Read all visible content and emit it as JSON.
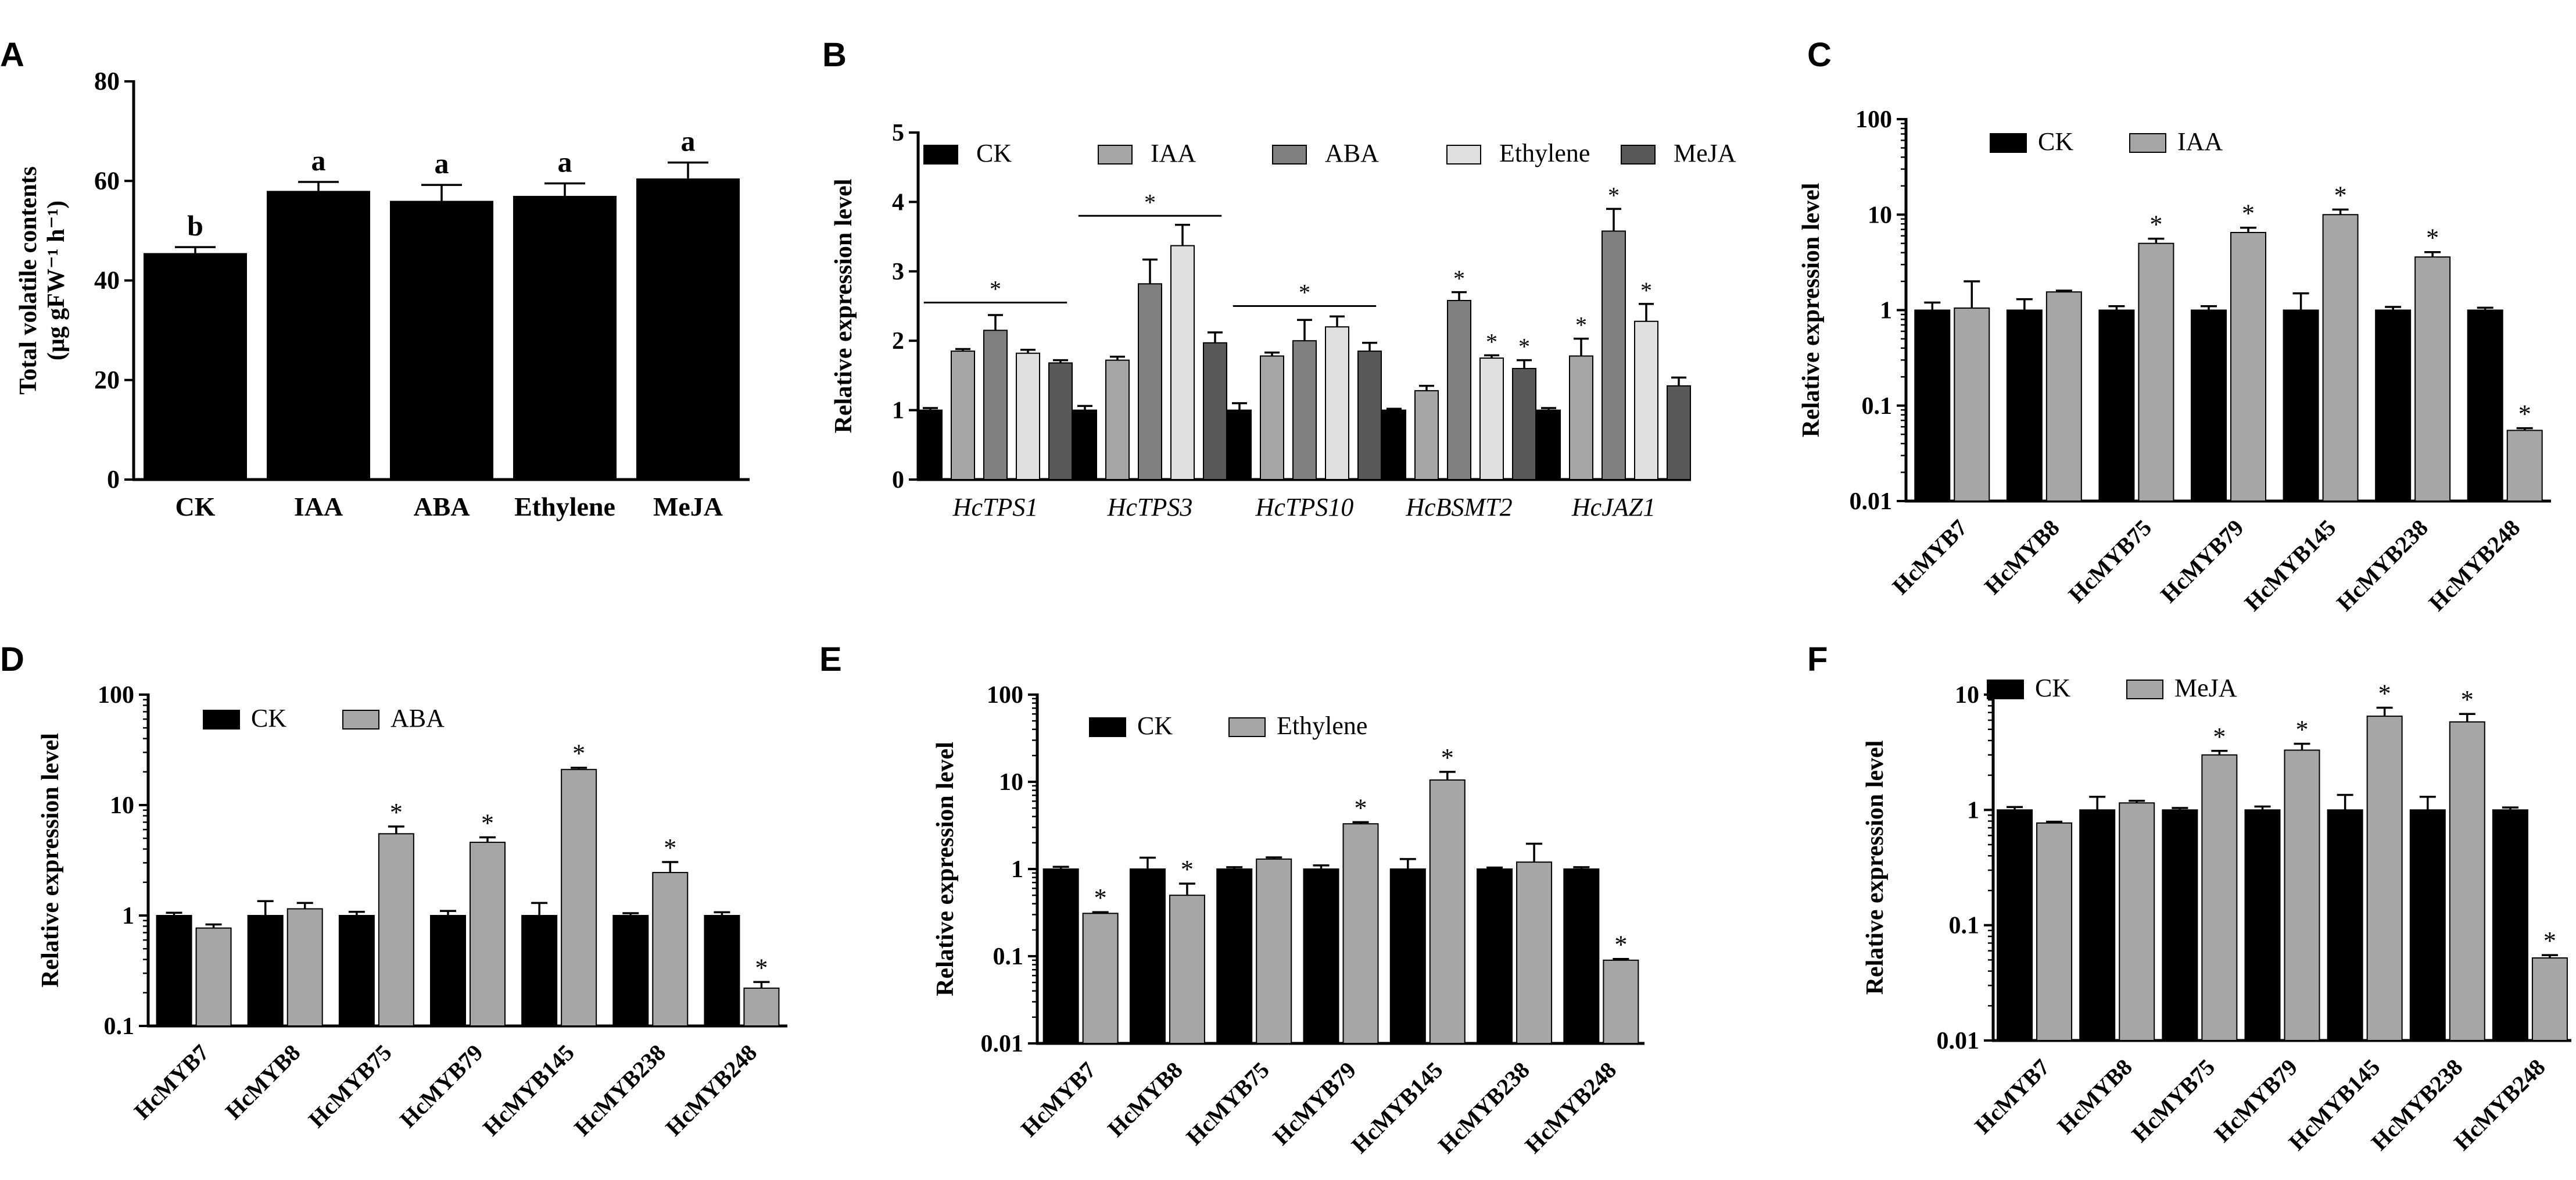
{
  "colors": {
    "CK": "#000000",
    "IAA": "#a6a6a6",
    "ABA": "#808080",
    "Ethylene": "#e0e0e0",
    "MeJA": "#595959",
    "treat": "#a6a6a6",
    "axis": "#000000"
  },
  "chart_data": [
    {
      "id": "A",
      "panel_label": "A",
      "type": "bar",
      "ylabel": "Total volatile contents",
      "ylabel_unit": "(μg gFW⁻¹ h⁻¹)",
      "ylim": [
        0,
        80
      ],
      "yticks": [
        0,
        20,
        40,
        60,
        80
      ],
      "categories": [
        "CK",
        "IAA",
        "ABA",
        "Ethylene",
        "MeJA"
      ],
      "values": [
        45.5,
        58,
        56,
        57,
        60.5
      ],
      "errors": [
        1.2,
        1.8,
        3.2,
        2.5,
        3.2
      ],
      "letters": [
        "b",
        "a",
        "a",
        "a",
        "a"
      ]
    },
    {
      "id": "B",
      "panel_label": "B",
      "type": "bar",
      "ylabel": "Relative expression level",
      "ylim": [
        0,
        5
      ],
      "yticks": [
        0,
        1,
        2,
        3,
        4,
        5
      ],
      "categories": [
        "HcTPS1",
        "HcTPS3",
        "HcTPS10",
        "HcBSMT2",
        "HcJAZ1"
      ],
      "series": [
        {
          "name": "CK",
          "color_key": "CK",
          "values": [
            1,
            1,
            1,
            1,
            1
          ],
          "errors": [
            0.03,
            0.06,
            0.1,
            0.02,
            0.03
          ]
        },
        {
          "name": "IAA",
          "color_key": "IAA",
          "values": [
            1.85,
            1.72,
            1.78,
            1.28,
            1.78
          ],
          "errors": [
            0.03,
            0.05,
            0.05,
            0.07,
            0.25
          ]
        },
        {
          "name": "ABA",
          "color_key": "ABA",
          "values": [
            2.15,
            2.82,
            2.0,
            2.58,
            3.58
          ],
          "errors": [
            0.22,
            0.35,
            0.3,
            0.12,
            0.32
          ]
        },
        {
          "name": "Ethylene",
          "color_key": "Ethylene",
          "values": [
            1.82,
            3.37,
            2.2,
            1.75,
            2.28
          ],
          "errors": [
            0.05,
            0.3,
            0.15,
            0.04,
            0.25
          ]
        },
        {
          "name": "MeJA",
          "color_key": "MeJA",
          "values": [
            1.68,
            1.97,
            1.85,
            1.6,
            1.35
          ],
          "errors": [
            0.04,
            0.15,
            0.12,
            0.12,
            0.12
          ]
        }
      ],
      "group_sig": [
        {
          "category": "HcTPS1",
          "label": "*",
          "value": 2.55
        },
        {
          "category": "HcTPS3",
          "label": "*",
          "value": 3.8
        },
        {
          "category": "HcTPS10",
          "label": "*",
          "value": 2.5
        }
      ],
      "sig": [
        {
          "category": "HcBSMT2",
          "series": "ABA",
          "label": "*"
        },
        {
          "category": "HcBSMT2",
          "series": "Ethylene",
          "label": "*"
        },
        {
          "category": "HcBSMT2",
          "series": "MeJA",
          "label": "*"
        },
        {
          "category": "HcJAZ1",
          "series": "IAA",
          "label": "*"
        },
        {
          "category": "HcJAZ1",
          "series": "ABA",
          "label": "*"
        },
        {
          "category": "HcJAZ1",
          "series": "Ethylene",
          "label": "*"
        }
      ]
    },
    {
      "id": "C",
      "panel_label": "C",
      "type": "bar",
      "yscale": "log",
      "ylabel": "Relative expression level",
      "ylim": [
        0.01,
        100
      ],
      "yticks": [
        0.01,
        0.1,
        1,
        10,
        100
      ],
      "ytick_labels": [
        "0.01",
        "0.1",
        "1",
        "10",
        "100"
      ],
      "categories": [
        "HcMYB7",
        "HcMYB8",
        "HcMYB75",
        "HcMYB79",
        "HcMYB145",
        "HcMYB238",
        "HcMYB248"
      ],
      "series": [
        {
          "name": "CK",
          "color_key": "CK",
          "values": [
            1,
            1,
            1,
            1,
            1,
            1,
            1
          ],
          "errors": [
            0.2,
            0.3,
            0.1,
            0.1,
            0.5,
            0.08,
            0.06
          ]
        },
        {
          "name": "IAA",
          "color_key": "treat",
          "values": [
            1.05,
            1.55,
            5.0,
            6.5,
            10.0,
            3.6,
            0.055
          ],
          "errors": [
            0.95,
            0.05,
            0.6,
            0.8,
            1.3,
            0.45,
            0.003
          ]
        }
      ],
      "sig": [
        "",
        "",
        "*",
        "*",
        "*",
        "*",
        "*"
      ]
    },
    {
      "id": "D",
      "panel_label": "D",
      "type": "bar",
      "yscale": "log",
      "ylabel": "Relative expression level",
      "ylim": [
        0.1,
        100
      ],
      "yticks": [
        0.1,
        1,
        10,
        100
      ],
      "ytick_labels": [
        "0.1",
        "1",
        "10",
        "100"
      ],
      "categories": [
        "HcMYB7",
        "HcMYB8",
        "HcMYB75",
        "HcMYB79",
        "HcMYB145",
        "HcMYB238",
        "HcMYB248"
      ],
      "series": [
        {
          "name": "CK",
          "color_key": "CK",
          "values": [
            1,
            1,
            1,
            1,
            1,
            1,
            1
          ],
          "errors": [
            0.06,
            0.35,
            0.08,
            0.1,
            0.3,
            0.05,
            0.07
          ]
        },
        {
          "name": "ABA",
          "color_key": "treat",
          "values": [
            0.77,
            1.15,
            5.5,
            4.6,
            21,
            2.45,
            0.22
          ],
          "errors": [
            0.06,
            0.15,
            0.9,
            0.5,
            0.8,
            0.6,
            0.03
          ]
        }
      ],
      "sig": [
        "",
        "",
        "*",
        "*",
        "*",
        "*",
        "*"
      ]
    },
    {
      "id": "E",
      "panel_label": "E",
      "type": "bar",
      "yscale": "log",
      "ylabel": "Relative expression level",
      "ylim": [
        0.01,
        100
      ],
      "yticks": [
        0.01,
        0.1,
        1,
        10,
        100
      ],
      "ytick_labels": [
        "0.01",
        "0.1",
        "1",
        "10",
        "100"
      ],
      "categories": [
        "HcMYB7",
        "HcMYB8",
        "HcMYB75",
        "HcMYB79",
        "HcMYB145",
        "HcMYB238",
        "HcMYB248"
      ],
      "series": [
        {
          "name": "CK",
          "color_key": "CK",
          "values": [
            1,
            1,
            1,
            1,
            1,
            1,
            1
          ],
          "errors": [
            0.06,
            0.35,
            0.05,
            0.1,
            0.3,
            0.04,
            0.05
          ]
        },
        {
          "name": "Ethylene",
          "color_key": "treat",
          "values": [
            0.31,
            0.5,
            1.3,
            3.3,
            10.5,
            1.2,
            0.09
          ],
          "errors": [
            0.01,
            0.18,
            0.06,
            0.15,
            2.5,
            0.75,
            0.003
          ]
        }
      ],
      "sig": [
        "*",
        "*",
        "",
        "*",
        "*",
        "",
        "*"
      ]
    },
    {
      "id": "F",
      "panel_label": "F",
      "type": "bar",
      "yscale": "log",
      "ylabel": "Relative expression level",
      "ylim": [
        0.01,
        10
      ],
      "yticks": [
        0.01,
        0.1,
        1,
        10
      ],
      "ytick_labels": [
        "0.01",
        "0.1",
        "1",
        "10"
      ],
      "categories": [
        "HcMYB7",
        "HcMYB8",
        "HcMYB75",
        "HcMYB79",
        "HcMYB145",
        "HcMYB238",
        "HcMYB248"
      ],
      "series": [
        {
          "name": "CK",
          "color_key": "CK",
          "values": [
            1,
            1,
            1,
            1,
            1,
            1,
            1
          ],
          "errors": [
            0.06,
            0.3,
            0.04,
            0.07,
            0.35,
            0.3,
            0.05
          ]
        },
        {
          "name": "MeJA",
          "color_key": "treat",
          "values": [
            0.77,
            1.15,
            3.0,
            3.3,
            6.5,
            5.8,
            0.052
          ],
          "errors": [
            0.02,
            0.05,
            0.25,
            0.45,
            1.2,
            1.0,
            0.003
          ]
        }
      ],
      "sig": [
        "",
        "",
        "*",
        "*",
        "*",
        "*",
        "*"
      ]
    }
  ]
}
